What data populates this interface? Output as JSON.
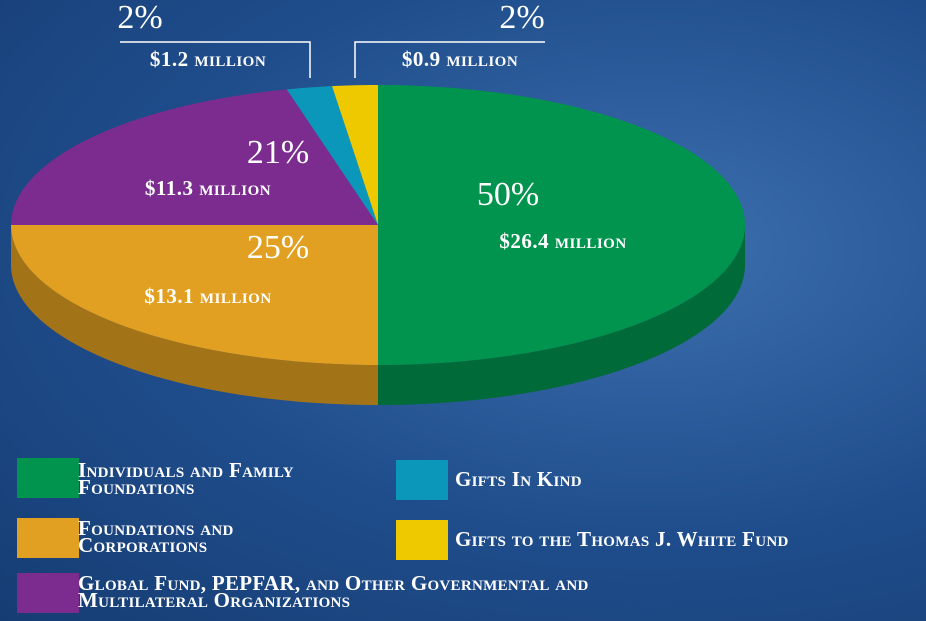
{
  "chart_data": {
    "type": "pie",
    "categories": [
      "Individuals and Family Foundations",
      "Foundations and Corporations",
      "Global Fund, PEPFAR, and Other Governmental and Multilateral Organizations",
      "Gifts In Kind",
      "Gifts to the  Thomas J. White Fund"
    ],
    "values": [
      50,
      25,
      21,
      2,
      2
    ],
    "value_labels": [
      "50%",
      "25%",
      "21%",
      "2%",
      "2%"
    ],
    "amount_labels": [
      "$26.4 million",
      "$13.1 million",
      "$11.3 million",
      "$1.2 million",
      "$0.9 million"
    ],
    "colors": [
      "#00944e",
      "#e2a022",
      "#7c2c8f",
      "#0b97b9",
      "#efc900"
    ]
  }
}
